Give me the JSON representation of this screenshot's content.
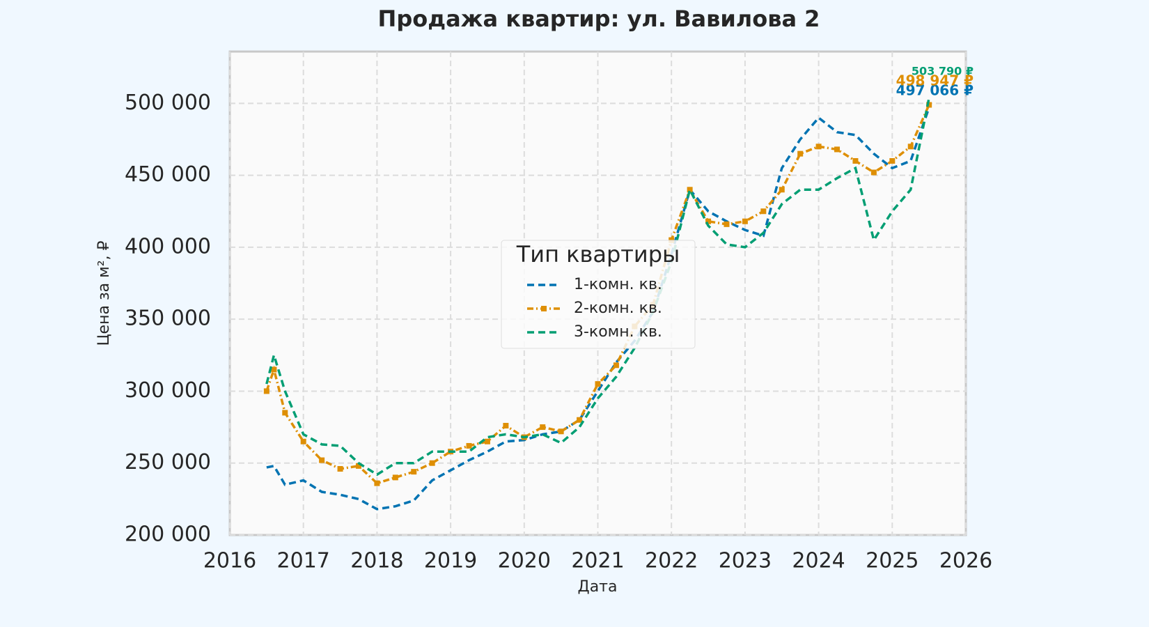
{
  "chart_data": {
    "type": "line",
    "title": "Продажа квартир: ул. Вавилова 2",
    "x_label": "Дата",
    "y_label": "Цена за м², ₽",
    "legend_title": "Тип квартиры",
    "legend": "center",
    "grid": true,
    "x": [
      2016.5,
      2016.6,
      2016.75,
      2017,
      2017.25,
      2017.5,
      2017.75,
      2018,
      2018.25,
      2018.5,
      2018.75,
      2019,
      2019.25,
      2019.5,
      2019.75,
      2020,
      2020.25,
      2020.5,
      2020.75,
      2021,
      2021.25,
      2021.5,
      2021.75,
      2022,
      2022.25,
      2022.5,
      2022.75,
      2023,
      2023.25,
      2023.5,
      2023.75,
      2024,
      2024.25,
      2024.5,
      2024.75,
      2025,
      2025.25,
      2025.5
    ],
    "series": [
      {
        "name": "1-комн. кв.",
        "color": "#0173b2",
        "dash": "10,6",
        "marker": false,
        "end_label": "497 066 ₽",
        "values": [
          247000,
          248000,
          235000,
          238000,
          230000,
          228000,
          225000,
          218000,
          220000,
          224000,
          238000,
          245000,
          252000,
          258000,
          265000,
          266000,
          270000,
          272000,
          280000,
          300000,
          320000,
          335000,
          355000,
          395000,
          440000,
          425000,
          418000,
          412000,
          408000,
          455000,
          475000,
          490000,
          480000,
          478000,
          465000,
          455000,
          460000,
          497066
        ]
      },
      {
        "name": "2-комн. кв.",
        "color": "#de8f05",
        "dash": "9,4,2,4",
        "marker": true,
        "end_label": "498 947 ₽",
        "values": [
          300000,
          315000,
          285000,
          265000,
          252000,
          246000,
          248000,
          236000,
          240000,
          244000,
          250000,
          258000,
          262000,
          265000,
          276000,
          268000,
          275000,
          272000,
          280000,
          305000,
          318000,
          345000,
          360000,
          405000,
          440000,
          418000,
          416000,
          418000,
          425000,
          440000,
          465000,
          470000,
          468000,
          460000,
          452000,
          460000,
          470000,
          498947
        ]
      },
      {
        "name": "3-комн. кв.",
        "color": "#029e73",
        "dash": "10,6",
        "marker": false,
        "end_label": "503 790 ₽",
        "values": [
          305000,
          325000,
          300000,
          270000,
          263000,
          262000,
          250000,
          242000,
          250000,
          250000,
          258000,
          258000,
          258000,
          268000,
          270000,
          268000,
          270000,
          264000,
          275000,
          295000,
          310000,
          330000,
          355000,
          390000,
          440000,
          415000,
          402000,
          400000,
          410000,
          430000,
          440000,
          440000,
          448000,
          455000,
          405000,
          425000,
          440000,
          503790
        ]
      }
    ],
    "xlim": [
      2016,
      2026
    ],
    "xticks": [
      2016,
      2017,
      2018,
      2019,
      2020,
      2021,
      2022,
      2023,
      2024,
      2025,
      2026
    ],
    "ylim": [
      200000,
      536000
    ],
    "yticks": [
      {
        "value": 200000,
        "label": "200 000"
      },
      {
        "value": 250000,
        "label": "250 000"
      },
      {
        "value": 300000,
        "label": "300 000"
      },
      {
        "value": 350000,
        "label": "350 000"
      },
      {
        "value": 400000,
        "label": "400 000"
      },
      {
        "value": 450000,
        "label": "450 000"
      },
      {
        "value": 500000,
        "label": "500 000"
      }
    ]
  }
}
